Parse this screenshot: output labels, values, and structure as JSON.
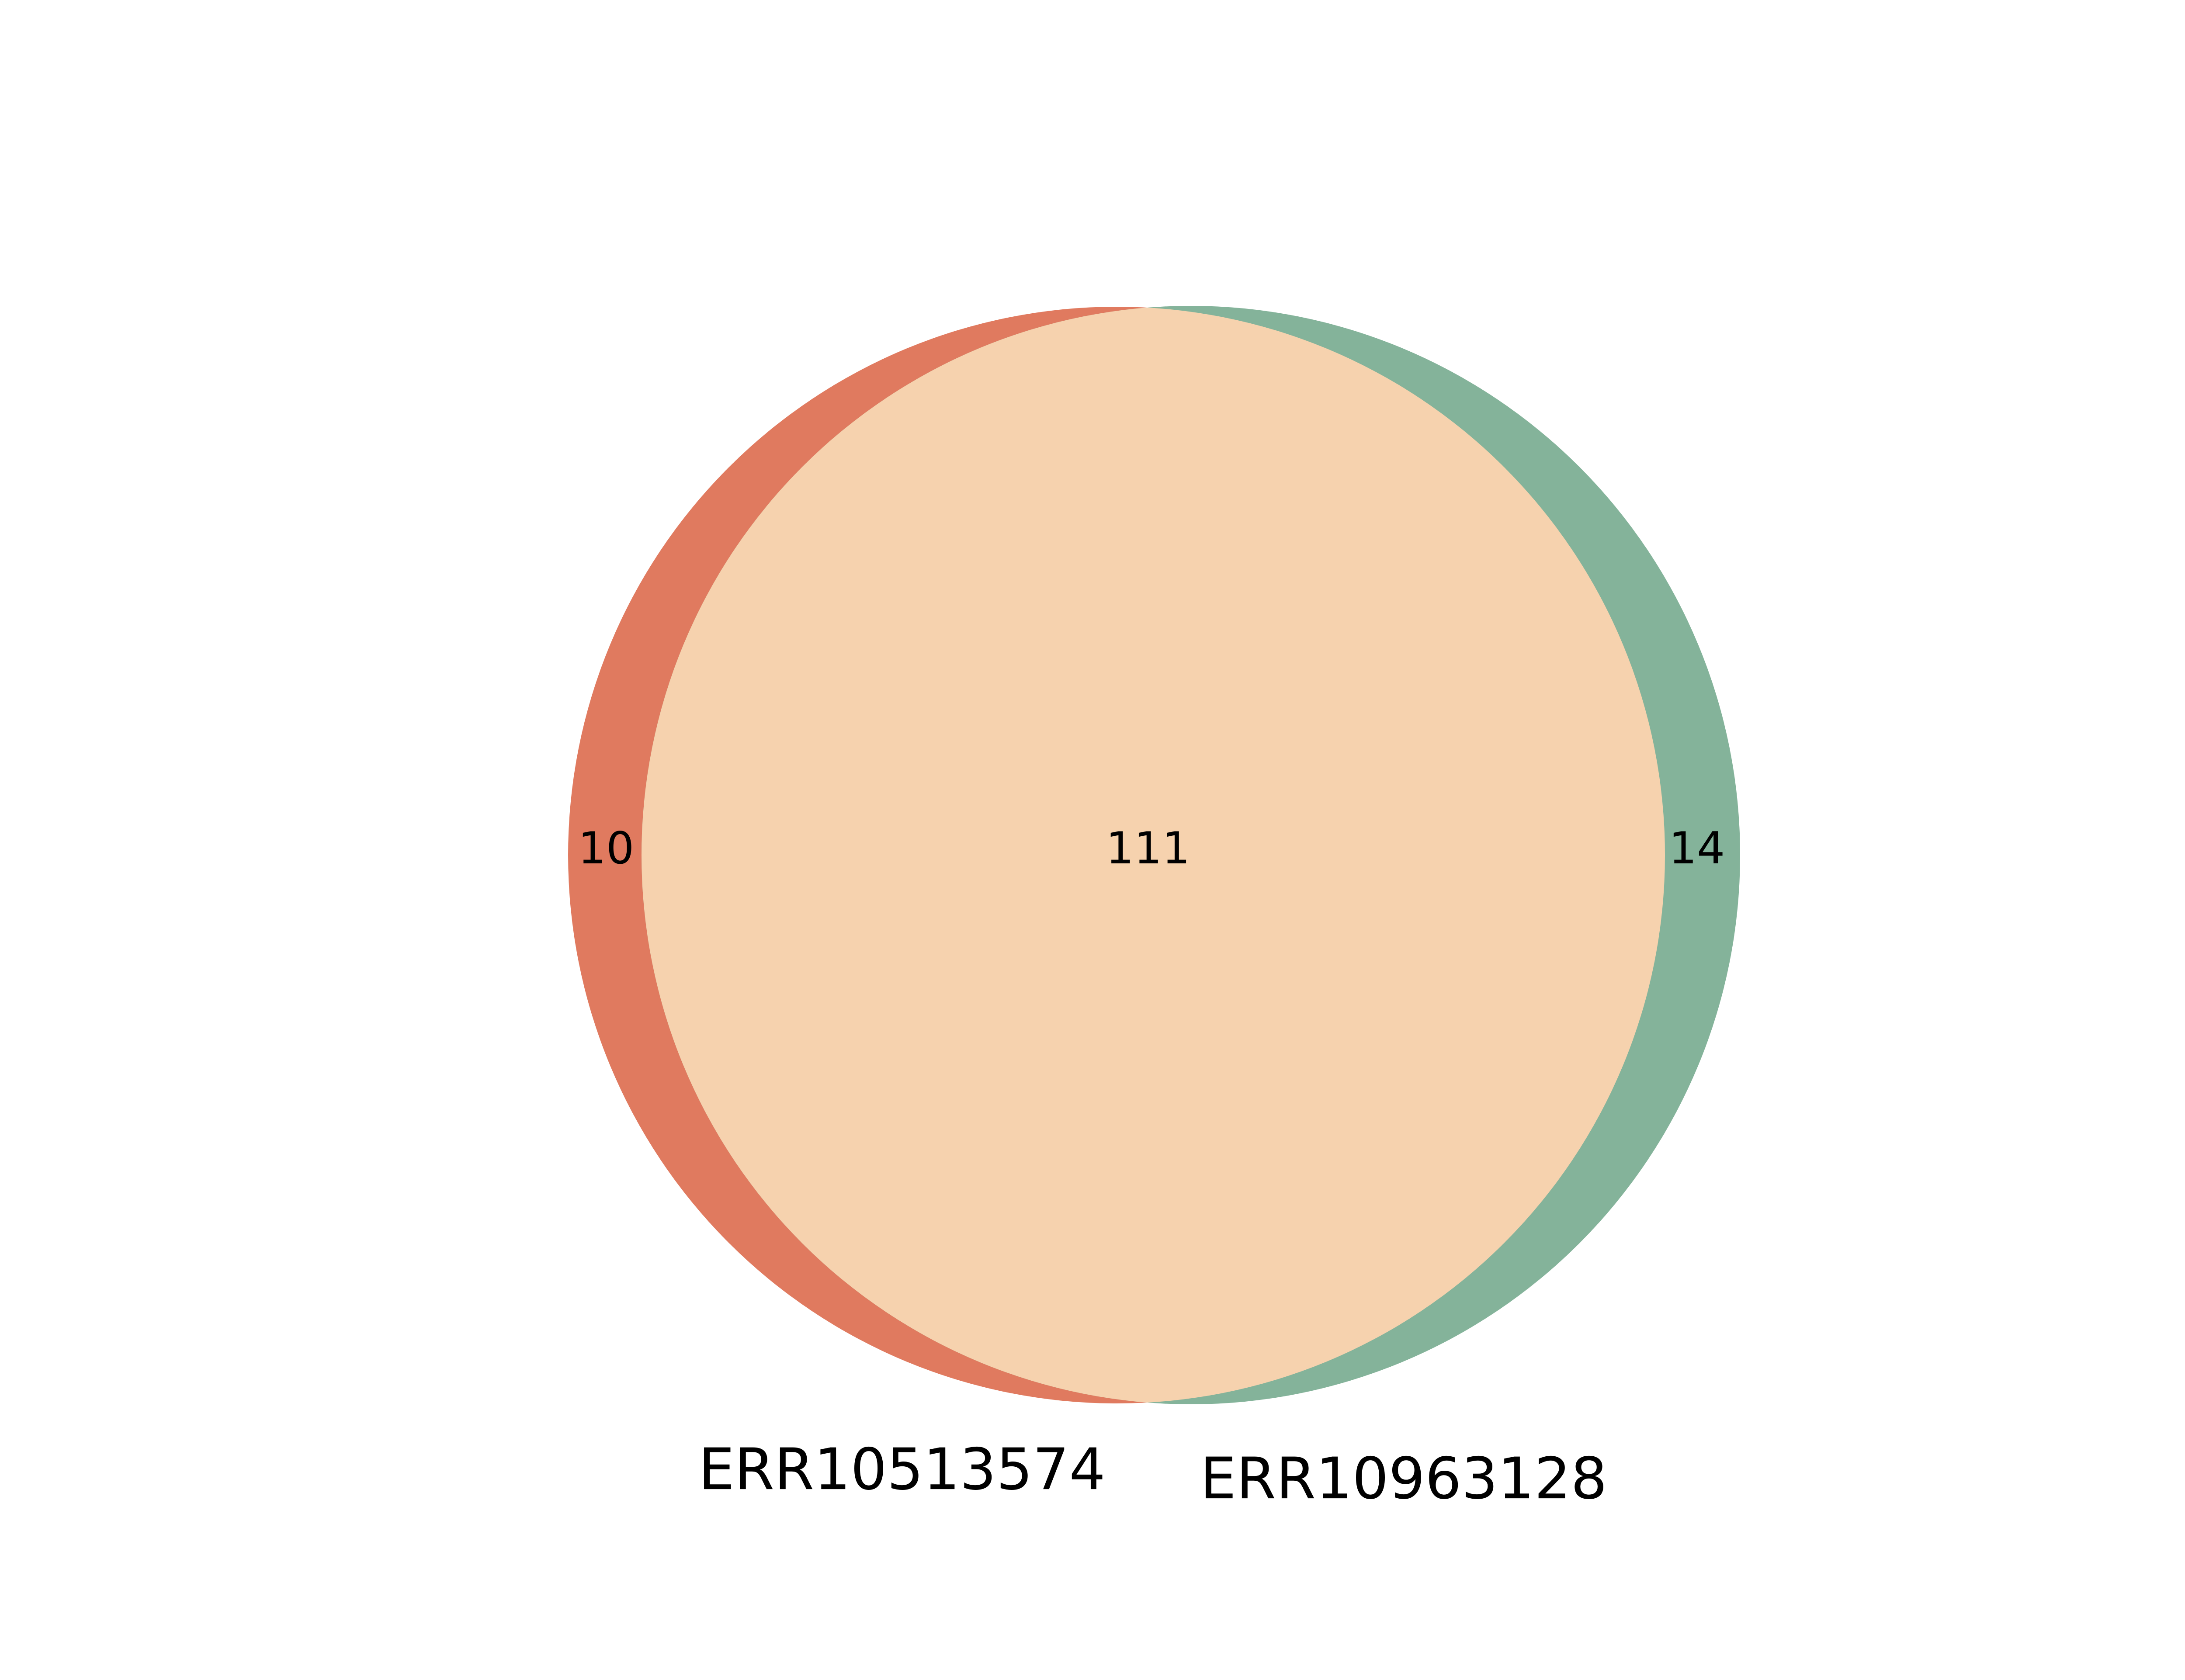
{
  "diagram": {
    "type": "venn2",
    "sets": [
      {
        "name": "ERR10513574",
        "only_count": "10",
        "color": "#E07A5F"
      },
      {
        "name": "ERR10963128",
        "only_count": "14",
        "color": "#84B39A"
      }
    ],
    "intersection": {
      "count": "111",
      "color": "#F6D2AE"
    }
  }
}
